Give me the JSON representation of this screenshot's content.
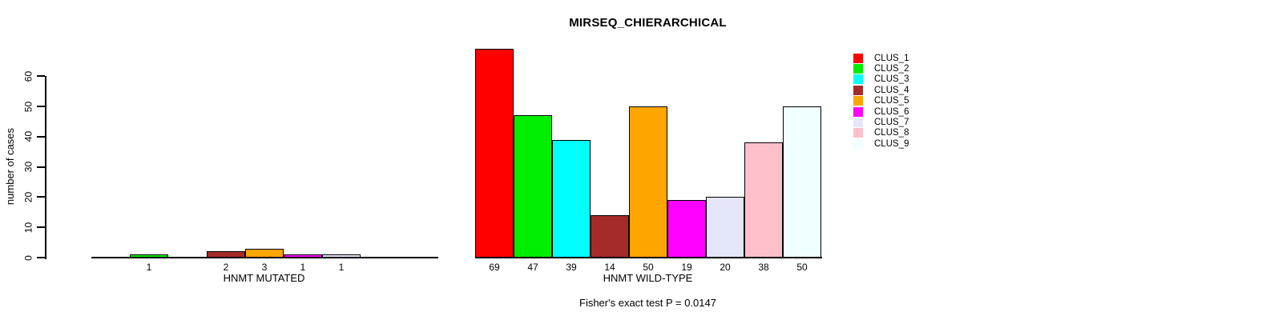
{
  "title": "MIRSEQ_CHIERARCHICAL",
  "footnote": "Fisher's exact test P = 0.0147",
  "y_axis": {
    "label": "number of cases",
    "ticks": [
      0,
      10,
      20,
      30,
      40,
      50,
      60
    ]
  },
  "legend": {
    "position": "right",
    "entries": [
      {
        "label": "CLUS_1",
        "color": "#ff0000"
      },
      {
        "label": "CLUS_2",
        "color": "#00ee00"
      },
      {
        "label": "CLUS_3",
        "color": "#00ffff"
      },
      {
        "label": "CLUS_4",
        "color": "#a52a2a"
      },
      {
        "label": "CLUS_5",
        "color": "#ffa500"
      },
      {
        "label": "CLUS_6",
        "color": "#ff00ff"
      },
      {
        "label": "CLUS_7",
        "color": "#e6e6fa"
      },
      {
        "label": "CLUS_8",
        "color": "#ffc0cb"
      },
      {
        "label": "CLUS_9",
        "color": "#f0ffff"
      }
    ]
  },
  "chart_data": [
    {
      "type": "bar",
      "panel": "left",
      "xlabel": "HNMT MUTATED",
      "ylabel": "number of cases",
      "ylim": [
        0,
        60
      ],
      "grid": false,
      "categories": [
        "CLUS_1",
        "CLUS_2",
        "CLUS_3",
        "CLUS_4",
        "CLUS_5",
        "CLUS_6",
        "CLUS_7",
        "CLUS_8",
        "CLUS_9"
      ],
      "values": [
        0,
        1,
        0,
        2,
        3,
        1,
        1,
        0,
        0
      ],
      "bar_labels": [
        "",
        "1",
        "",
        "2",
        "3",
        "1",
        "1",
        "",
        ""
      ],
      "colors": [
        "#ff0000",
        "#00ee00",
        "#00ffff",
        "#a52a2a",
        "#ffa500",
        "#ff00ff",
        "#e6e6fa",
        "#ffc0cb",
        "#f0ffff"
      ]
    },
    {
      "type": "bar",
      "panel": "right",
      "xlabel": "HNMT WILD-TYPE",
      "ylabel": "number of cases",
      "ylim": [
        0,
        60
      ],
      "grid": false,
      "categories": [
        "CLUS_1",
        "CLUS_2",
        "CLUS_3",
        "CLUS_4",
        "CLUS_5",
        "CLUS_6",
        "CLUS_7",
        "CLUS_8",
        "CLUS_9"
      ],
      "values": [
        69,
        47,
        39,
        14,
        50,
        19,
        20,
        38,
        50
      ],
      "bar_labels": [
        "69",
        "47",
        "39",
        "14",
        "50",
        "19",
        "20",
        "38",
        "50"
      ],
      "colors": [
        "#ff0000",
        "#00ee00",
        "#00ffff",
        "#a52a2a",
        "#ffa500",
        "#ff00ff",
        "#e6e6fa",
        "#ffc0cb",
        "#f0ffff"
      ]
    }
  ]
}
